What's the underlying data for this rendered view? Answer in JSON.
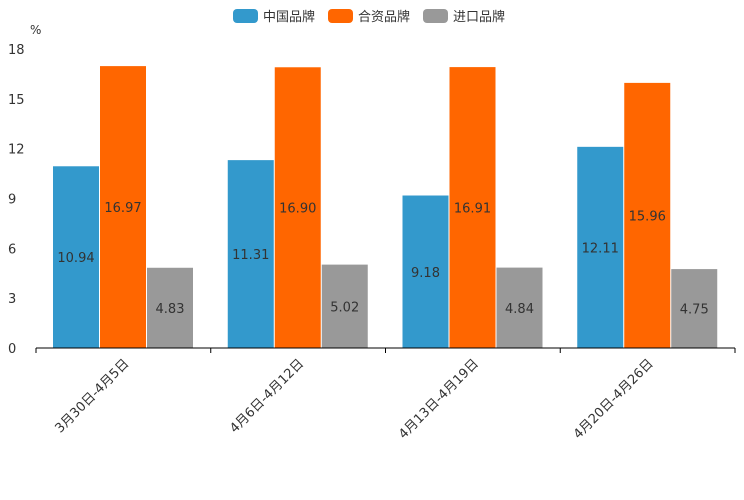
{
  "chart_data": {
    "type": "bar",
    "unit": "%",
    "categories": [
      "3月30日-4月5日",
      "4月6日-4月12日",
      "4月13日-4月19日",
      "4月20日-4月26日"
    ],
    "series": [
      {
        "name": "中国品牌",
        "color": "#3399cc",
        "values": [
          10.94,
          11.31,
          9.18,
          12.11
        ]
      },
      {
        "name": "合资品牌",
        "color": "#ff6600",
        "values": [
          16.97,
          16.9,
          16.91,
          15.96
        ]
      },
      {
        "name": "进口品牌",
        "color": "#999999",
        "values": [
          4.83,
          5.02,
          4.84,
          4.75
        ]
      }
    ],
    "ylim": [
      0,
      18
    ],
    "yticks": [
      "0",
      "3",
      "6",
      "9",
      "12",
      "15",
      "18"
    ],
    "legend_position": "top-center",
    "grid": false
  }
}
